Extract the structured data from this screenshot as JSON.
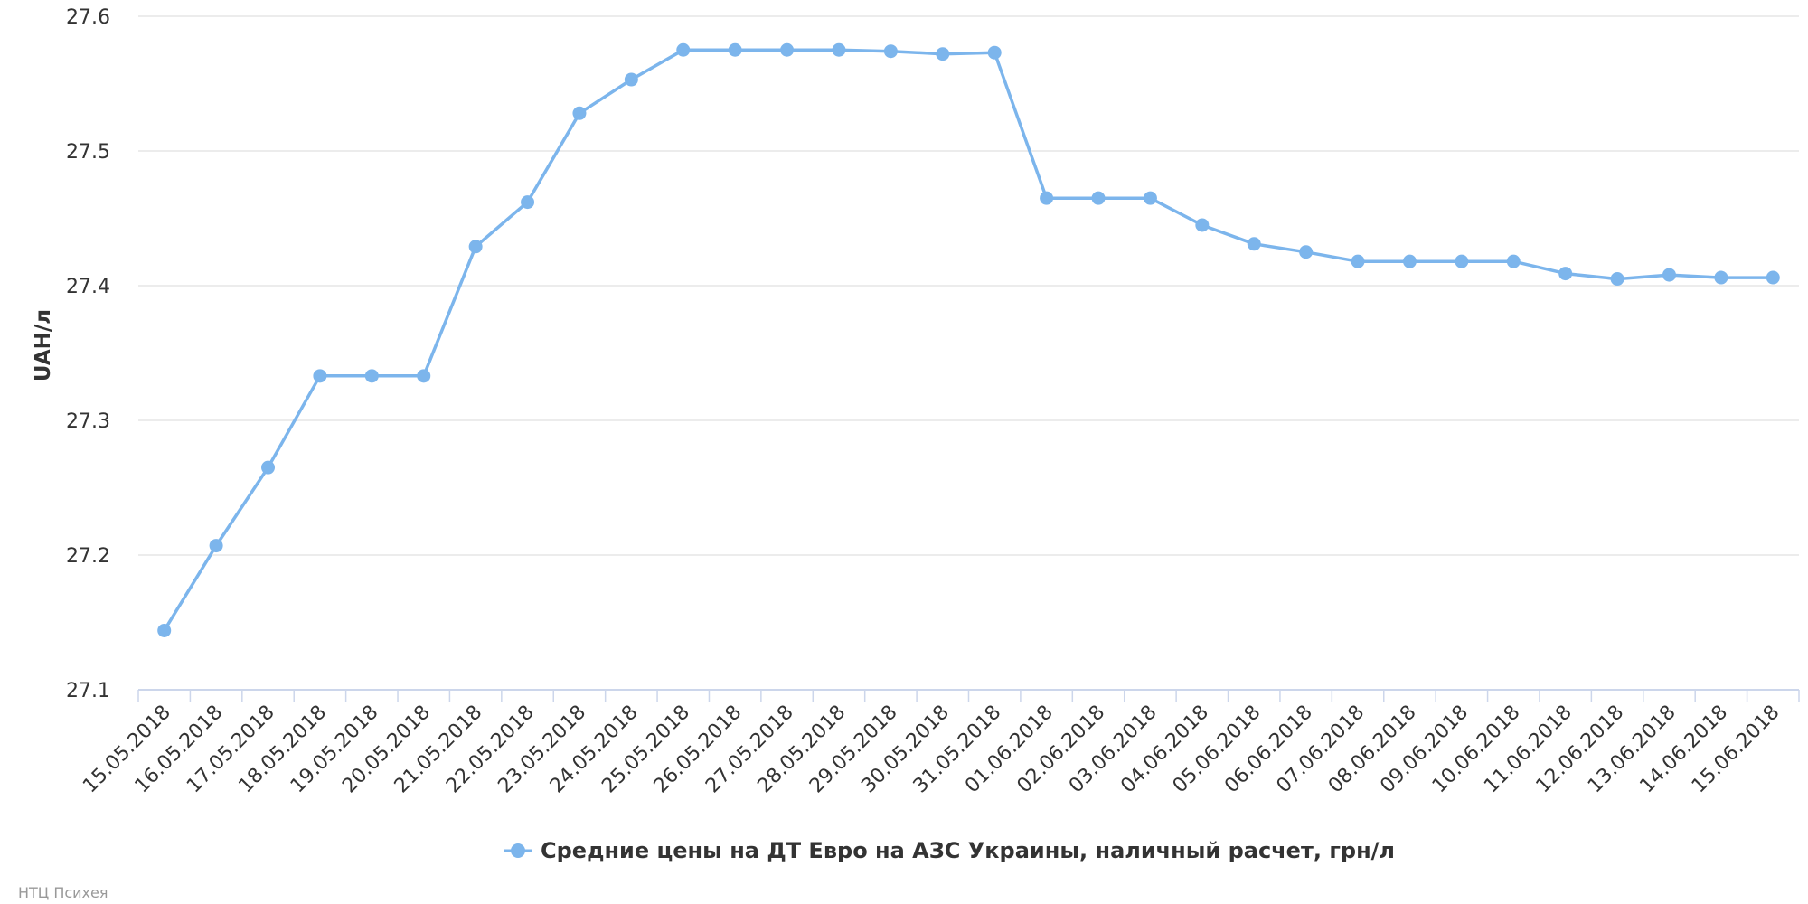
{
  "chart_data": {
    "type": "line",
    "ylabel": "UAH/л",
    "ylim": [
      27.1,
      27.6
    ],
    "y_ticks": [
      "27.1",
      "27.2",
      "27.3",
      "27.4",
      "27.5",
      "27.6"
    ],
    "grid": true,
    "legend_position": "bottom-center",
    "categories": [
      "15.05.2018",
      "16.05.2018",
      "17.05.2018",
      "18.05.2018",
      "19.05.2018",
      "20.05.2018",
      "21.05.2018",
      "22.05.2018",
      "23.05.2018",
      "24.05.2018",
      "25.05.2018",
      "26.05.2018",
      "27.05.2018",
      "28.05.2018",
      "29.05.2018",
      "30.05.2018",
      "31.05.2018",
      "01.06.2018",
      "02.06.2018",
      "03.06.2018",
      "04.06.2018",
      "05.06.2018",
      "06.06.2018",
      "07.06.2018",
      "08.06.2018",
      "09.06.2018",
      "10.06.2018",
      "11.06.2018",
      "12.06.2018",
      "13.06.2018",
      "14.06.2018",
      "15.06.2018"
    ],
    "series": [
      {
        "name": "Средние цены на ДТ Евро на АЗС Украины, наличный расчет, грн/л",
        "color": "#7cb5ec",
        "values": [
          27.144,
          27.207,
          27.265,
          27.333,
          27.333,
          27.333,
          27.429,
          27.462,
          27.528,
          27.553,
          27.575,
          27.575,
          27.575,
          27.575,
          27.574,
          27.572,
          27.573,
          27.465,
          27.465,
          27.465,
          27.445,
          27.431,
          27.425,
          27.418,
          27.418,
          27.418,
          27.418,
          27.409,
          27.405,
          27.408,
          27.406,
          27.406
        ]
      }
    ]
  },
  "credit": "НТЦ Психея"
}
